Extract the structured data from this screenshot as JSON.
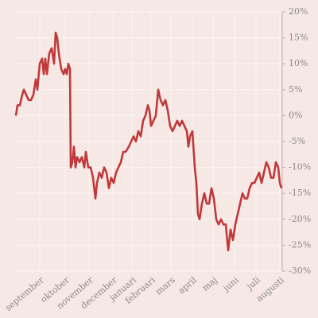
{
  "chart_data": {
    "type": "line",
    "color": "#c0393b",
    "grid": true,
    "y_axis_side": "right",
    "x": [
      0,
      2,
      5,
      8,
      10,
      13,
      16,
      19,
      22,
      25,
      27,
      30,
      33,
      35,
      37,
      39,
      42,
      45,
      48,
      50,
      52,
      54,
      57,
      60,
      62,
      64,
      66,
      68,
      69,
      71,
      73,
      75,
      77,
      80,
      83,
      86,
      88,
      91,
      94,
      97,
      100,
      102,
      105,
      108,
      111,
      114,
      117,
      120,
      123,
      126,
      129,
      132,
      135,
      138,
      142,
      145,
      148,
      151,
      154,
      157,
      160,
      163,
      166,
      168,
      170,
      173,
      176,
      179,
      182,
      185,
      188,
      191,
      194,
      197,
      200,
      203,
      206,
      209,
      212,
      215,
      217,
      219,
      222,
      225,
      227,
      229,
      231,
      234,
      237,
      240,
      243,
      246,
      249,
      252,
      255,
      258,
      261,
      264,
      267,
      270,
      273,
      276,
      279,
      282,
      285,
      288,
      291,
      294,
      297,
      300,
      303,
      306,
      309,
      312,
      315,
      318,
      321,
      324,
      327,
      330,
      332,
      334
    ],
    "values": [
      0,
      2,
      2,
      4,
      5,
      4,
      3,
      3,
      4,
      7,
      5,
      10,
      11,
      8,
      11,
      8,
      12,
      13,
      10,
      16,
      15,
      12,
      9,
      8,
      9,
      8,
      10,
      9,
      -10,
      -9,
      -6,
      -10,
      -8,
      -9,
      -8,
      -10,
      -7,
      -10,
      -10,
      -12,
      -16,
      -13,
      -11,
      -12,
      -10,
      -11,
      -14,
      -12,
      -13,
      -11,
      -10,
      -9,
      -7,
      -7,
      -6,
      -5,
      -4,
      -5,
      -3,
      -4,
      -1,
      0,
      2,
      1,
      -2,
      -1,
      0,
      5,
      3,
      2,
      3,
      1,
      -2,
      -3,
      -2,
      -1,
      -2,
      -1,
      -2,
      -3,
      -6,
      -4,
      -3,
      -10,
      -13,
      -19,
      -20,
      -17,
      -15,
      -17,
      -17,
      -14,
      -16,
      -20,
      -21,
      -20,
      -21,
      -21,
      -26,
      -22,
      -24,
      -21,
      -19,
      -17,
      -15,
      -16,
      -16,
      -14,
      -13,
      -13,
      -12,
      -11,
      -13,
      -11,
      -9,
      -10,
      -12,
      -12,
      -9,
      -10,
      -13,
      -14
    ],
    "xlim": [
      0,
      335
    ],
    "xticks": [
      {
        "value": 30,
        "label": "september"
      },
      {
        "value": 62,
        "label": "oktober"
      },
      {
        "value": 92,
        "label": "november"
      },
      {
        "value": 122,
        "label": "december"
      },
      {
        "value": 146,
        "label": "januari"
      },
      {
        "value": 170,
        "label": "februari"
      },
      {
        "value": 195,
        "label": "mars"
      },
      {
        "value": 222,
        "label": "april"
      },
      {
        "value": 248,
        "label": "maj"
      },
      {
        "value": 275,
        "label": "juni"
      },
      {
        "value": 302,
        "label": "juli"
      },
      {
        "value": 332,
        "label": "augusti"
      }
    ],
    "ylim": [
      -30,
      20
    ],
    "yticks": [
      {
        "value": 20,
        "label": "20%"
      },
      {
        "value": 15,
        "label": "15%"
      },
      {
        "value": 10,
        "label": "10%"
      },
      {
        "value": 5,
        "label": "5%"
      },
      {
        "value": 0,
        "label": "0%"
      },
      {
        "value": -5,
        "label": "-5%"
      },
      {
        "value": -10,
        "label": "-10%"
      },
      {
        "value": -15,
        "label": "-15%"
      },
      {
        "value": -20,
        "label": "-20%"
      },
      {
        "value": -25,
        "label": "-25%"
      },
      {
        "value": -30,
        "label": "-30%"
      }
    ]
  }
}
